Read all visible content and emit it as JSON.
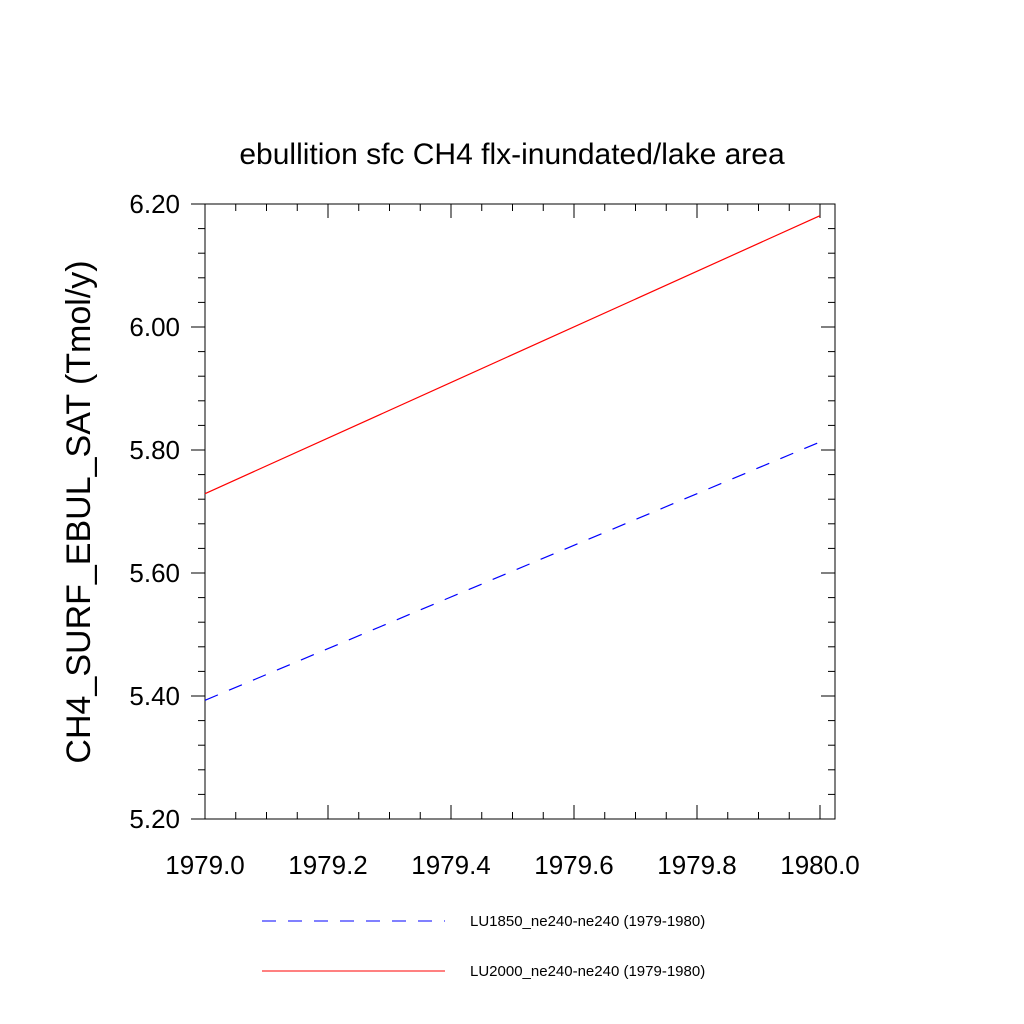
{
  "chart_data": {
    "type": "line",
    "title": "ebullition sfc CH4 flx-inundated/lake area",
    "xlabel": "",
    "ylabel": "CH4_SURF_EBUL_SAT  (Tmol/y)",
    "xlim": [
      1979.0,
      1980.0
    ],
    "ylim": [
      5.2,
      6.2
    ],
    "xticks": [
      "1979.0",
      "1979.2",
      "1979.4",
      "1979.6",
      "1979.8",
      "1980.0"
    ],
    "yticks": [
      "5.20",
      "5.40",
      "5.60",
      "5.80",
      "6.00",
      "6.20"
    ],
    "grid": false,
    "legend_position": "bottom",
    "series": [
      {
        "name": "LU1850_ne240-ne240 (1979-1980)",
        "x": [
          1979.0,
          1980.0
        ],
        "y": [
          5.393,
          5.813
        ],
        "color": "#0000ff",
        "line_style": "dashed"
      },
      {
        "name": "LU2000_ne240-ne240 (1979-1980)",
        "x": [
          1979.0,
          1980.0
        ],
        "y": [
          5.729,
          6.181
        ],
        "color": "#ff0000",
        "line_style": "solid"
      }
    ]
  }
}
